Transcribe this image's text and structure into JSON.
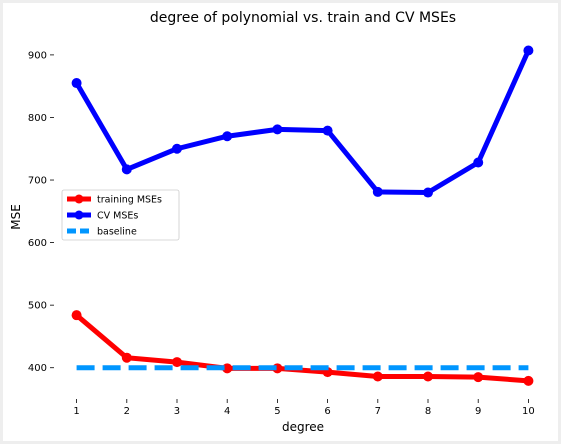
{
  "chart_data": {
    "type": "line",
    "title": "degree of polynomial vs. train and CV MSEs",
    "xlabel": "degree",
    "ylabel": "MSE",
    "x": [
      1,
      2,
      3,
      4,
      5,
      6,
      7,
      8,
      9,
      10
    ],
    "xlim": [
      0.55,
      10.45
    ],
    "ylim": [
      350,
      935
    ],
    "xticks": [
      "1",
      "2",
      "3",
      "4",
      "5",
      "6",
      "7",
      "8",
      "9",
      "10"
    ],
    "yticks": [
      400,
      500,
      600,
      700,
      800,
      900
    ],
    "grid": false,
    "legend_position": "center-left",
    "series": [
      {
        "name": "training MSEs",
        "color": "#ff0000",
        "style": "solid",
        "marker": "circle",
        "values": [
          484,
          416,
          409,
          399,
          399,
          393,
          386,
          386,
          385,
          379
        ]
      },
      {
        "name": "CV MSEs",
        "color": "#0000ff",
        "style": "solid",
        "marker": "circle",
        "values": [
          855,
          717,
          750,
          770,
          781,
          779,
          681,
          680,
          728,
          907
        ]
      },
      {
        "name": "baseline",
        "color": "#0096ff",
        "style": "dashed",
        "marker": "none",
        "values": [
          400,
          400,
          400,
          400,
          400,
          400,
          400,
          400,
          400,
          400
        ]
      }
    ]
  }
}
